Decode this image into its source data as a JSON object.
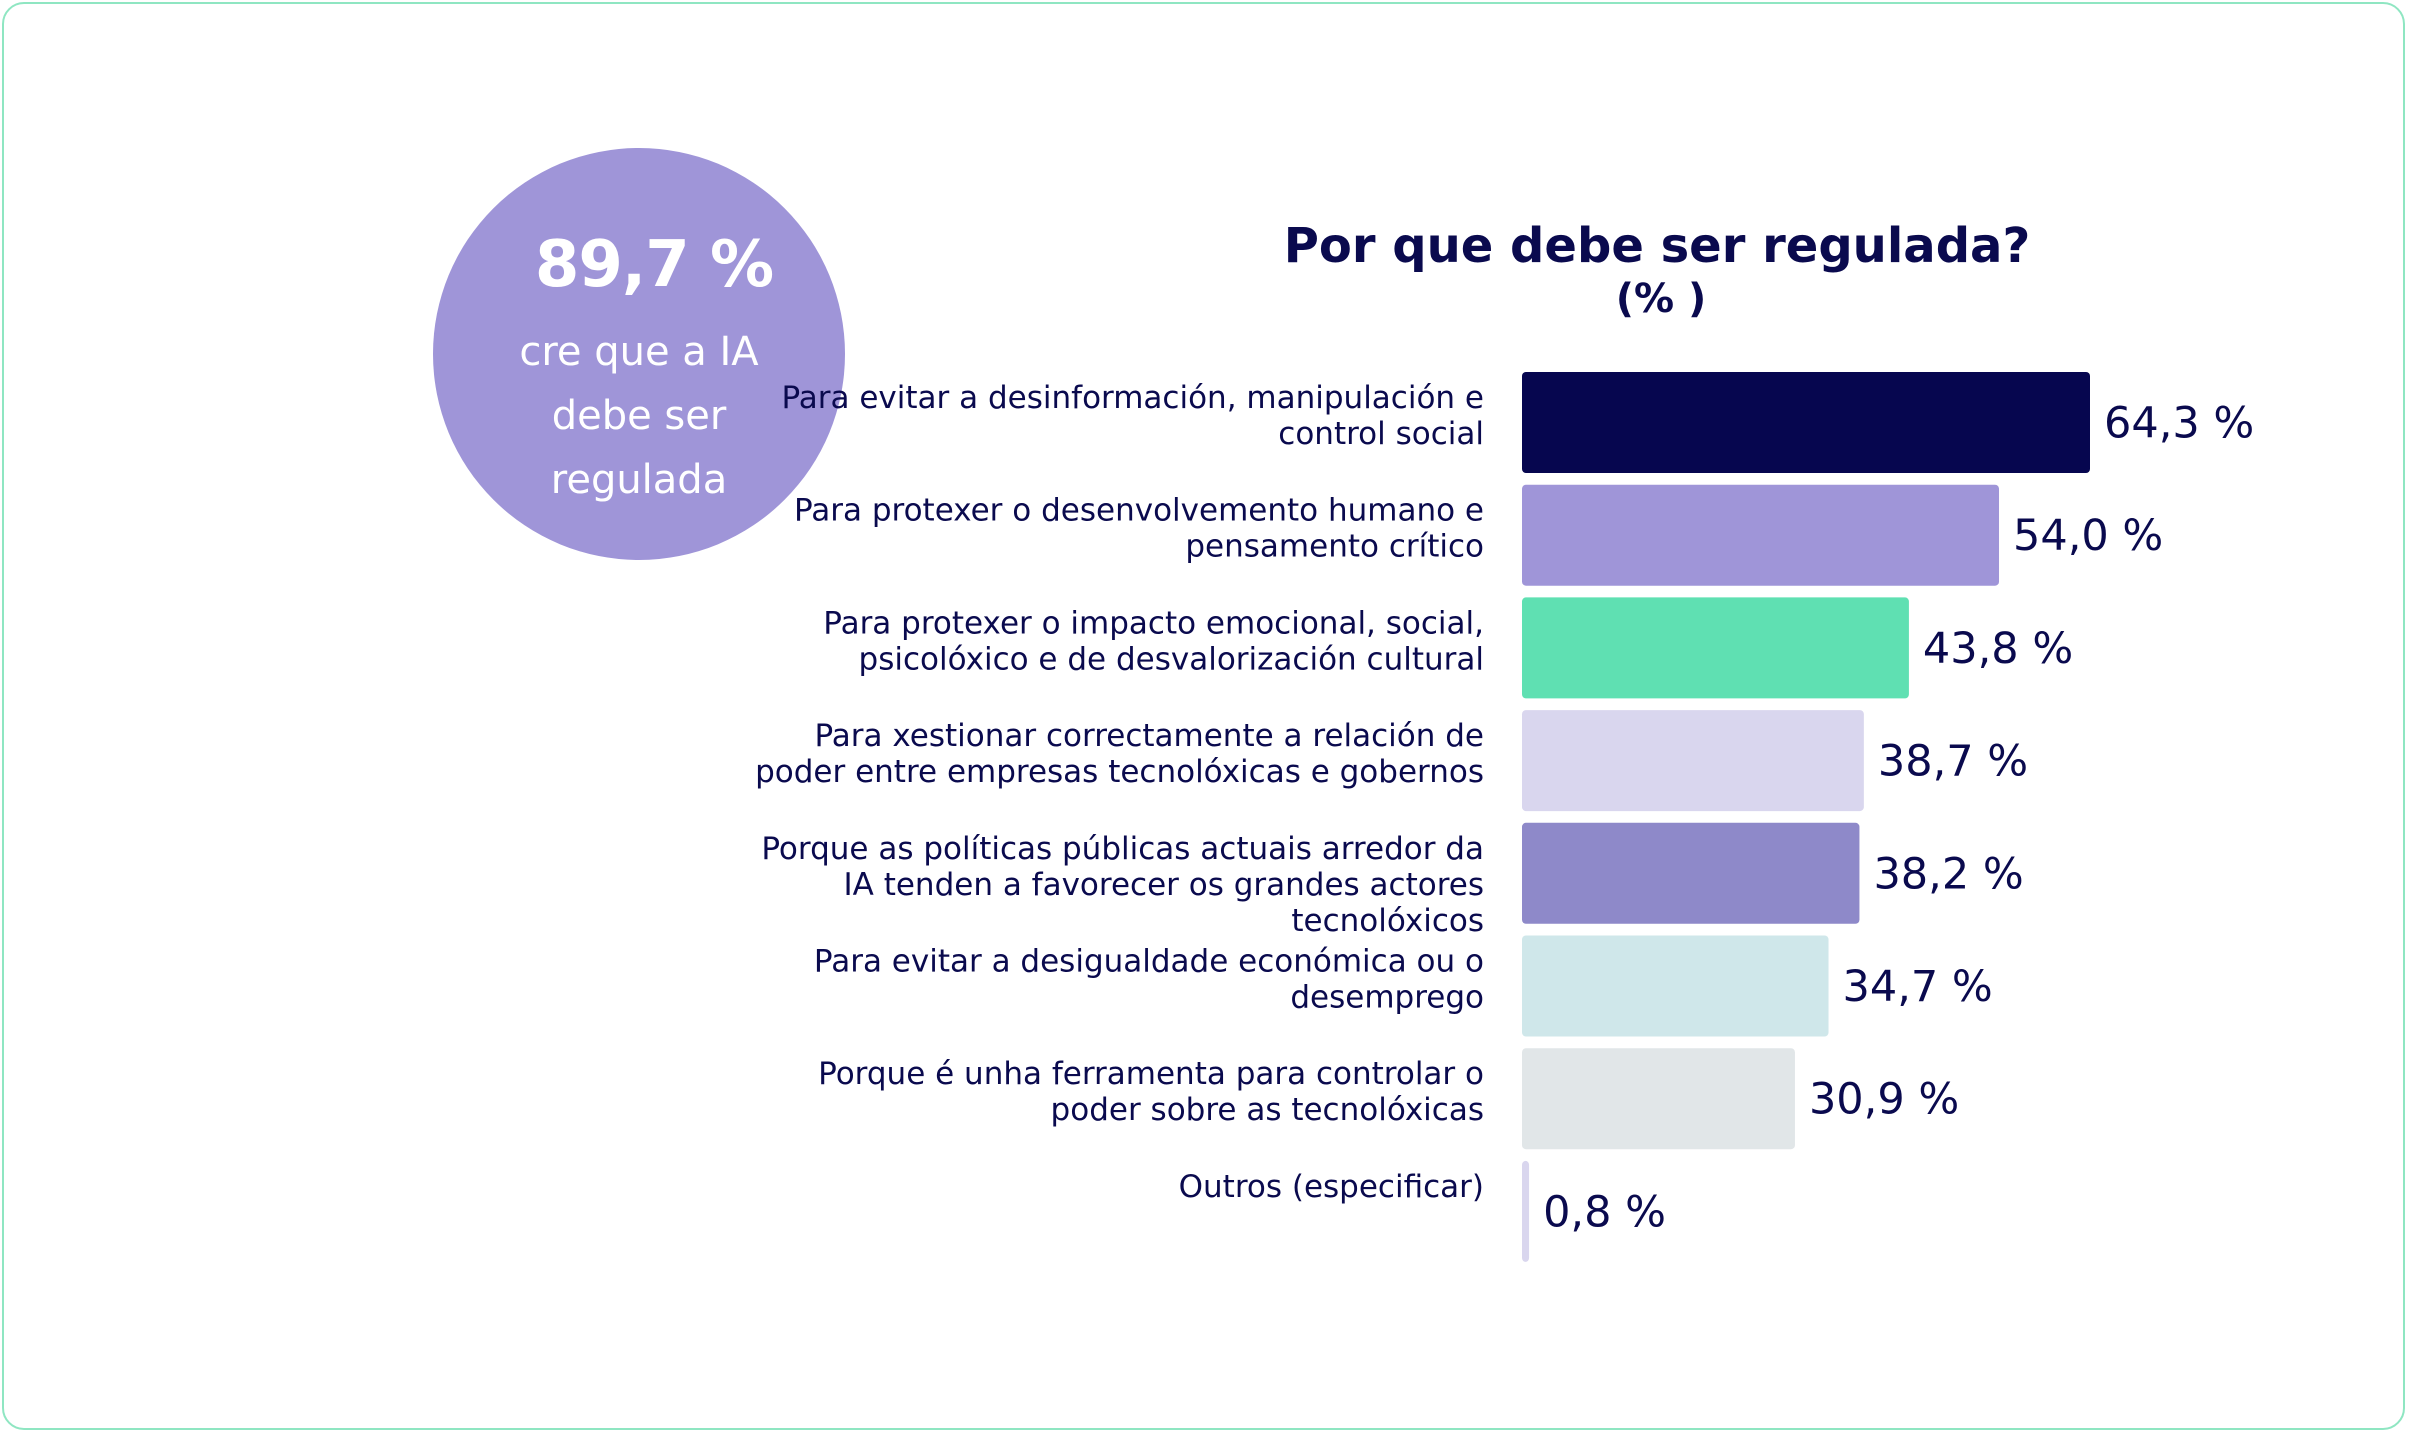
{
  "callout": {
    "value": "89,7 %",
    "caption": "cre que a IA debe ser regulada",
    "color": "#9f95d8"
  },
  "chart_data": {
    "type": "bar",
    "orientation": "horizontal",
    "title": "Por que debe ser regulada?",
    "subtitle": "(% )",
    "categories": [
      [
        "Para evitar a desinformación, manipulación e",
        "control social"
      ],
      [
        "Para protexer o desenvolvemento humano e",
        "pensamento crítico"
      ],
      [
        "Para protexer o impacto emocional, social,",
        "psicolóxico e de desvalorización cultural"
      ],
      [
        "Para xestionar correctamente a relación de",
        "poder entre empresas tecnolóxicas e gobernos"
      ],
      [
        "Porque as políticas públicas actuais arredor da",
        "IA tenden a favorecer os grandes actores",
        "tecnolóxicos"
      ],
      [
        "Para evitar a desigualdade económica ou o",
        "desemprego"
      ],
      [
        "Porque é unha ferramenta para controlar o",
        "poder sobre as tecnolóxicas"
      ],
      [
        "Outros (especificar)"
      ]
    ],
    "values": [
      64.3,
      54.0,
      43.8,
      38.7,
      38.2,
      34.7,
      30.9,
      0.8
    ],
    "value_labels": [
      "64,3 %",
      "54,0 %",
      "43,8 %",
      "38,7 %",
      "38,2 %",
      "34,7 %",
      "30,9 %",
      "0,8 %"
    ],
    "colors": [
      "#06064f",
      "#9f95d8",
      "#5fe0b2",
      "#d9d6ee",
      "#8e89c9",
      "#cfe7ea",
      "#e1e6e8",
      "#d9d6ee"
    ],
    "xlim": [
      0,
      64.3
    ],
    "grid": false,
    "legend": "none"
  }
}
